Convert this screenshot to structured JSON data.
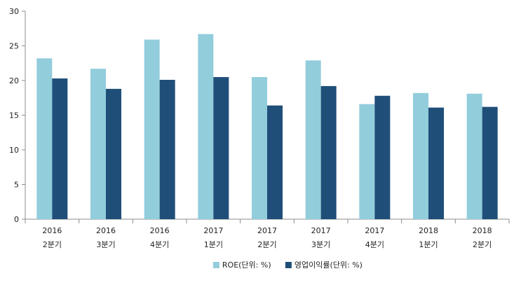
{
  "chart_data": {
    "type": "bar",
    "categories": [
      [
        "2016",
        "2분기"
      ],
      [
        "2016",
        "3분기"
      ],
      [
        "2016",
        "4분기"
      ],
      [
        "2017",
        "1분기"
      ],
      [
        "2017",
        "2분기"
      ],
      [
        "2017",
        "3분기"
      ],
      [
        "2017",
        "4분기"
      ],
      [
        "2018",
        "1분기"
      ],
      [
        "2018",
        "2분기"
      ]
    ],
    "series": [
      {
        "name": "ROE(단위: %)",
        "color": "#92CDDC",
        "values": [
          23.2,
          21.7,
          25.9,
          26.7,
          20.5,
          22.9,
          16.6,
          18.2,
          18.1
        ]
      },
      {
        "name": "영업이익률(단위: %)",
        "color": "#1F4E79",
        "values": [
          20.3,
          18.8,
          20.1,
          20.5,
          16.4,
          19.2,
          17.8,
          16.1,
          16.2
        ]
      }
    ],
    "ylim": [
      0,
      30
    ],
    "yticks": [
      0,
      5,
      10,
      15,
      20,
      25,
      30
    ],
    "grid": false,
    "legend_position": "bottom-center"
  }
}
